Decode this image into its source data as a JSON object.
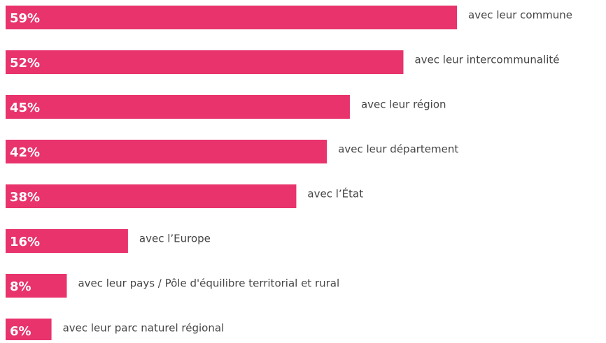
{
  "chart_data": {
    "type": "bar",
    "categories": [
      "avec leur commune",
      "avec leur intercommunalité",
      "avec leur région",
      "avec leur département",
      "avec l’État",
      "avec l’Europe",
      "avec leur pays / Pôle d'équilibre territorial et rural",
      "avec leur parc naturel régional"
    ],
    "values": [
      59,
      52,
      45,
      42,
      38,
      16,
      8,
      6
    ],
    "value_labels": [
      "59%",
      "52%",
      "45%",
      "42%",
      "38%",
      "16%",
      "8%",
      "6%"
    ],
    "color": "#e8336d"
  }
}
